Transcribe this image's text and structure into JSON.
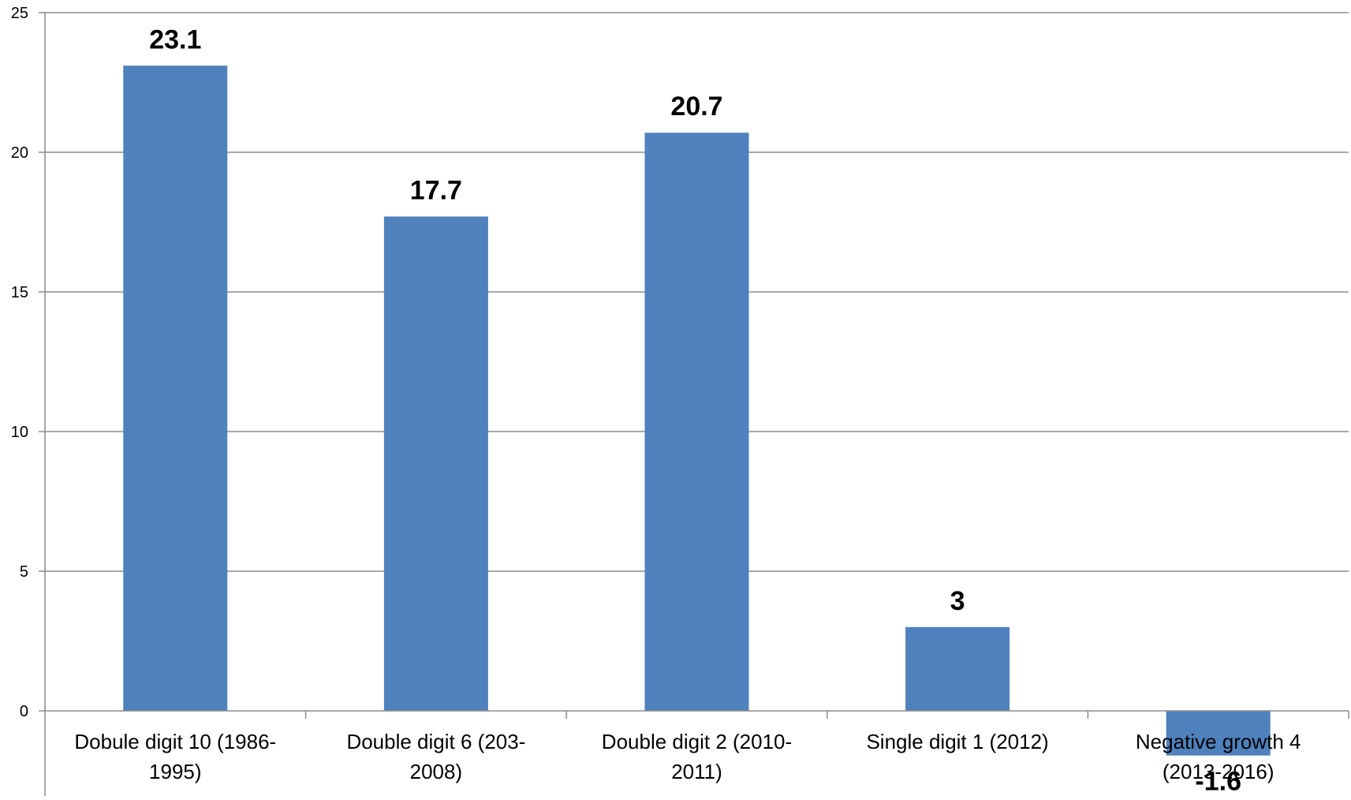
{
  "chart_data": {
    "type": "bar",
    "categories": [
      [
        "Dobule digit 10 (1986-",
        "1995)"
      ],
      [
        "Double digit 6 (203-",
        "2008)"
      ],
      [
        "Double digit 2 (2010-",
        "2011)"
      ],
      [
        "Single digit 1 (2012)"
      ],
      [
        "Negative growth 4",
        "(2013-2016)"
      ]
    ],
    "values": [
      23.1,
      17.7,
      20.7,
      3,
      -1.6
    ],
    "data_labels": [
      "23.1",
      "17.7",
      "20.7",
      "3",
      "-1.6"
    ],
    "ylim": [
      0,
      25
    ],
    "yticks": [
      "0",
      "5",
      "10",
      "15",
      "20",
      "25"
    ],
    "grid": true,
    "legend": "none",
    "colors": {
      "bar": "#4f81bd",
      "grid": "#8c8c8c",
      "axis": "#8c8c8c"
    }
  }
}
